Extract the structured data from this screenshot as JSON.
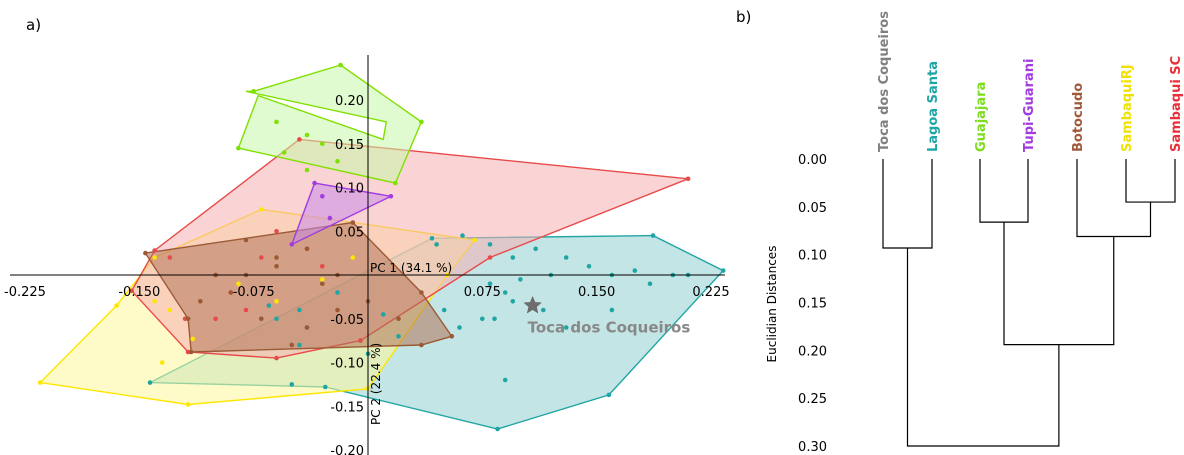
{
  "chart_data": [
    {
      "panel_label": "a)",
      "type": "scatter",
      "xlabel": "PC 1 (34.1 %)",
      "ylabel": "PC 2 (22.4 %)",
      "xlim": [
        -0.25,
        0.24
      ],
      "ylim": [
        -0.21,
        0.25
      ],
      "x_ticks": [
        -0.225,
        -0.15,
        -0.075,
        0.075,
        0.15,
        0.225
      ],
      "x_tick_labels": [
        "-0.225",
        "-0.150",
        "-0.075",
        "0.075",
        "0.150",
        "0.225"
      ],
      "y_ticks": [
        0.2,
        0.15,
        0.1,
        0.05,
        -0.05,
        -0.1,
        -0.15,
        -0.2
      ],
      "y_tick_labels": [
        "0.20",
        "0.15",
        "0.10",
        "0.05",
        "-0.05",
        "-0.10",
        "-0.15",
        "-0.20"
      ],
      "annotation": {
        "text": "Toca dos Coqueiros",
        "x": 0.108,
        "y": -0.035,
        "color": "#888888"
      },
      "series": [
        {
          "color": "#20a5a5",
          "fill": "#93cfd0",
          "hull": [
            [
              -0.143,
              -0.123
            ],
            [
              0.042,
              0.042
            ],
            [
              0.187,
              0.045
            ],
            [
              0.233,
              0.005
            ],
            [
              0.158,
              -0.137
            ],
            [
              0.085,
              -0.176
            ],
            [
              -0.028,
              -0.128
            ]
          ],
          "points": [
            [
              -0.143,
              -0.123
            ],
            [
              0.042,
              0.042
            ],
            [
              0.187,
              0.045
            ],
            [
              0.233,
              0.005
            ],
            [
              0.158,
              -0.137
            ],
            [
              0.085,
              -0.176
            ],
            [
              -0.028,
              -0.128
            ],
            [
              0.045,
              0.035
            ],
            [
              0.062,
              0.045
            ],
            [
              0.08,
              0.035
            ],
            [
              0.095,
              0.02
            ],
            [
              0.11,
              0.03
            ],
            [
              0.12,
              0.0
            ],
            [
              0.13,
              0.02
            ],
            [
              0.145,
              0.01
            ],
            [
              0.16,
              0.0
            ],
            [
              0.175,
              0.005
            ],
            [
              0.185,
              -0.01
            ],
            [
              0.2,
              0.0
            ],
            [
              0.21,
              0.0
            ],
            [
              0.08,
              -0.01
            ],
            [
              0.095,
              -0.03
            ],
            [
              0.1,
              -0.005
            ],
            [
              0.115,
              -0.04
            ],
            [
              0.13,
              -0.06
            ],
            [
              0.16,
              -0.04
            ],
            [
              0.075,
              -0.05
            ],
            [
              0.083,
              -0.05
            ],
            [
              0.09,
              -0.02
            ],
            [
              0.09,
              -0.12
            ],
            [
              0.06,
              -0.06
            ],
            [
              0.05,
              -0.04
            ],
            [
              0.02,
              -0.07
            ],
            [
              0.0,
              -0.09
            ],
            [
              -0.04,
              -0.06
            ],
            [
              -0.045,
              -0.04
            ],
            [
              -0.065,
              -0.035
            ],
            [
              -0.045,
              -0.08
            ],
            [
              -0.02,
              -0.02
            ],
            [
              -0.06,
              -0.05
            ],
            [
              0.01,
              -0.045
            ],
            [
              -0.05,
              -0.125
            ]
          ]
        },
        {
          "color": "#ffe600",
          "fill": "#fdf79a",
          "hull": [
            [
              -0.215,
              -0.123
            ],
            [
              -0.118,
              -0.148
            ],
            [
              0.0,
              -0.13
            ],
            [
              0.052,
              0.0
            ],
            [
              0.07,
              0.04
            ],
            [
              -0.07,
              0.075
            ],
            [
              -0.14,
              0.02
            ],
            [
              -0.165,
              -0.035
            ]
          ],
          "points": [
            [
              -0.215,
              -0.123
            ],
            [
              -0.118,
              -0.148
            ],
            [
              0.0,
              -0.13
            ],
            [
              0.052,
              0.0
            ],
            [
              0.07,
              0.04
            ],
            [
              -0.07,
              0.075
            ],
            [
              -0.14,
              0.02
            ],
            [
              -0.165,
              -0.035
            ],
            [
              -0.115,
              -0.073
            ],
            [
              -0.085,
              -0.01
            ],
            [
              -0.14,
              -0.03
            ],
            [
              -0.13,
              -0.04
            ],
            [
              -0.06,
              -0.03
            ],
            [
              -0.03,
              -0.005
            ],
            [
              -0.01,
              0.02
            ],
            [
              -0.135,
              -0.1
            ]
          ]
        },
        {
          "color": "#e84a4a",
          "fill": "#f6b1b3",
          "hull": [
            [
              -0.045,
              0.155
            ],
            [
              0.21,
              0.11
            ],
            [
              0.08,
              0.02
            ],
            [
              -0.005,
              -0.075
            ],
            [
              -0.06,
              -0.095
            ],
            [
              -0.118,
              -0.088
            ],
            [
              -0.155,
              -0.018
            ],
            [
              -0.14,
              0.028
            ]
          ],
          "points": [
            [
              -0.045,
              0.155
            ],
            [
              0.21,
              0.11
            ],
            [
              0.08,
              0.02
            ],
            [
              -0.005,
              -0.075
            ],
            [
              -0.06,
              -0.095
            ],
            [
              -0.118,
              -0.088
            ],
            [
              -0.155,
              -0.018
            ],
            [
              -0.14,
              0.028
            ],
            [
              -0.13,
              0.02
            ],
            [
              -0.1,
              0.0
            ],
            [
              -0.09,
              -0.02
            ],
            [
              -0.07,
              0.02
            ],
            [
              -0.06,
              0.05
            ],
            [
              -0.04,
              0.03
            ],
            [
              -0.03,
              0.01
            ],
            [
              -0.1,
              -0.05
            ],
            [
              -0.12,
              -0.05
            ],
            [
              -0.08,
              -0.04
            ]
          ]
        },
        {
          "color": "#9b5a35",
          "fill": "#b27559",
          "hull": [
            [
              -0.146,
              0.025
            ],
            [
              -0.01,
              0.06
            ],
            [
              0.035,
              -0.02
            ],
            [
              0.055,
              -0.07
            ],
            [
              0.035,
              -0.08
            ],
            [
              -0.116,
              -0.088
            ],
            [
              -0.118,
              -0.05
            ]
          ],
          "points": [
            [
              -0.146,
              0.025
            ],
            [
              -0.01,
              0.06
            ],
            [
              0.035,
              -0.02
            ],
            [
              0.055,
              -0.07
            ],
            [
              0.035,
              -0.08
            ],
            [
              -0.116,
              -0.088
            ],
            [
              -0.118,
              -0.05
            ],
            [
              -0.08,
              0.04
            ],
            [
              -0.04,
              0.03
            ],
            [
              -0.06,
              0.01
            ],
            [
              -0.03,
              -0.01
            ],
            [
              -0.02,
              -0.04
            ],
            [
              -0.04,
              -0.06
            ],
            [
              -0.07,
              -0.05
            ],
            [
              -0.09,
              -0.02
            ],
            [
              -0.11,
              -0.03
            ],
            [
              0.0,
              -0.03
            ],
            [
              0.02,
              -0.05
            ],
            [
              -0.05,
              -0.08
            ],
            [
              -0.1,
              0.0
            ],
            [
              -0.08,
              0.0
            ],
            [
              -0.06,
              0.02
            ],
            [
              -0.02,
              0.0
            ]
          ]
        },
        {
          "color": "#80e000",
          "fill": "#c6f7a8",
          "hull": [
            [
              -0.072,
              0.205
            ],
            [
              0.01,
              0.155
            ],
            [
              0.012,
              0.175
            ],
            [
              -0.08,
              0.21
            ],
            [
              -0.075,
              0.21
            ],
            [
              -0.018,
              0.24
            ],
            [
              0.035,
              0.175
            ],
            [
              0.018,
              0.105
            ],
            [
              -0.085,
              0.145
            ]
          ],
          "points": [
            [
              -0.085,
              0.145
            ],
            [
              -0.075,
              0.21
            ],
            [
              -0.018,
              0.24
            ],
            [
              0.035,
              0.175
            ],
            [
              0.018,
              0.105
            ],
            [
              -0.06,
              0.175
            ],
            [
              -0.04,
              0.16
            ],
            [
              -0.03,
              0.15
            ],
            [
              -0.055,
              0.14
            ],
            [
              -0.04,
              0.12
            ],
            [
              -0.02,
              0.13
            ]
          ]
        },
        {
          "color": "#a23ce0",
          "fill": "#c88be8",
          "hull": [
            [
              -0.035,
              0.105
            ],
            [
              0.015,
              0.09
            ],
            [
              -0.05,
              0.035
            ]
          ],
          "points": [
            [
              -0.035,
              0.105
            ],
            [
              0.015,
              0.09
            ],
            [
              -0.05,
              0.035
            ],
            [
              -0.03,
              0.09
            ],
            [
              -0.025,
              0.065
            ]
          ]
        }
      ]
    },
    {
      "panel_label": "b)",
      "type": "dendrogram",
      "ylabel": "Euclidian Distances",
      "ylim": [
        0.0,
        0.3
      ],
      "y_ticks": [
        0.0,
        0.05,
        0.1,
        0.15,
        0.2,
        0.25,
        0.3
      ],
      "y_tick_labels": [
        "0.00",
        "0.05",
        "0.10",
        "0.15",
        "0.20",
        "0.25",
        "0.30"
      ],
      "leaves": [
        {
          "label": "Toca dos Coqueiros",
          "color": "#808080"
        },
        {
          "label": "Lagoa Santa",
          "color": "#20a5a5"
        },
        {
          "label": "Guajajara",
          "color": "#7ddc1f"
        },
        {
          "label": "Tupi-Guarani",
          "color": "#a23ce0"
        },
        {
          "label": "Botocudo",
          "color": "#a05a3c"
        },
        {
          "label": "SambaquiRJ",
          "color": "#f0e200"
        },
        {
          "label": "Sambaqui SC",
          "color": "#e8303a"
        }
      ],
      "merges": [
        {
          "left": 5,
          "right": 6,
          "height": 0.045
        },
        {
          "left": 2,
          "right": 3,
          "height": 0.066
        },
        {
          "left": 4,
          "right": "m0",
          "height": 0.081
        },
        {
          "left": 0,
          "right": 1,
          "height": 0.093
        },
        {
          "left": "m1",
          "right": "m2",
          "height": 0.194
        },
        {
          "left": "m3",
          "right": "m4",
          "height": 0.3
        }
      ]
    }
  ]
}
